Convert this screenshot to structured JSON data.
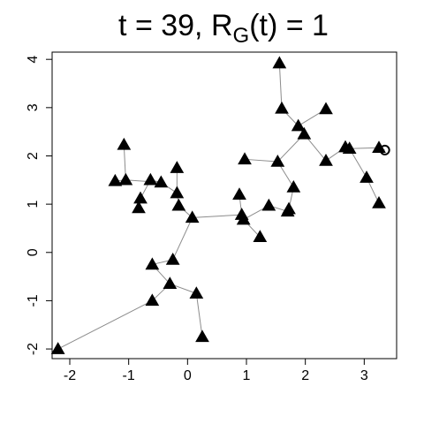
{
  "chart_data": {
    "type": "scatter",
    "title": {
      "prefix": "t = 39, R",
      "subscript": "G",
      "suffix": "(t) = 1"
    },
    "xlabel": "",
    "ylabel": "",
    "xlim": [
      -2.3,
      3.55
    ],
    "ylim": [
      -2.2,
      4.15
    ],
    "xticks": [
      -2,
      -1,
      0,
      1,
      2,
      3
    ],
    "yticks": [
      -2,
      -1,
      0,
      1,
      2,
      3,
      4
    ],
    "grid": false,
    "nodes": [
      {
        "x": -2.2,
        "y": -2.0
      },
      {
        "x": -0.6,
        "y": -1.0
      },
      {
        "x": -0.3,
        "y": -0.65
      },
      {
        "x": 0.15,
        "y": -0.85
      },
      {
        "x": 0.25,
        "y": -1.75
      },
      {
        "x": -0.6,
        "y": -0.25
      },
      {
        "x": -0.25,
        "y": -0.15
      },
      {
        "x": 0.08,
        "y": 0.72
      },
      {
        "x": -0.15,
        "y": 0.97
      },
      {
        "x": -0.18,
        "y": 1.23
      },
      {
        "x": -0.18,
        "y": 1.75
      },
      {
        "x": -0.45,
        "y": 1.45
      },
      {
        "x": -0.63,
        "y": 1.5
      },
      {
        "x": -0.8,
        "y": 1.12
      },
      {
        "x": -0.83,
        "y": 0.92
      },
      {
        "x": -1.05,
        "y": 1.5
      },
      {
        "x": -1.08,
        "y": 2.23
      },
      {
        "x": -1.23,
        "y": 1.48
      },
      {
        "x": 0.92,
        "y": 0.78
      },
      {
        "x": 0.88,
        "y": 1.2
      },
      {
        "x": 0.95,
        "y": 0.68
      },
      {
        "x": 1.23,
        "y": 0.32
      },
      {
        "x": 1.38,
        "y": 0.97
      },
      {
        "x": 1.7,
        "y": 0.85
      },
      {
        "x": 1.72,
        "y": 0.9
      },
      {
        "x": 1.8,
        "y": 1.35
      },
      {
        "x": 0.97,
        "y": 1.93
      },
      {
        "x": 1.53,
        "y": 1.88
      },
      {
        "x": 1.98,
        "y": 2.45
      },
      {
        "x": 1.88,
        "y": 2.62
      },
      {
        "x": 1.6,
        "y": 2.98
      },
      {
        "x": 1.56,
        "y": 3.92
      },
      {
        "x": 2.35,
        "y": 2.97
      },
      {
        "x": 2.35,
        "y": 1.9
      },
      {
        "x": 2.68,
        "y": 2.18
      },
      {
        "x": 2.75,
        "y": 2.15
      },
      {
        "x": 3.25,
        "y": 2.17
      },
      {
        "x": 3.04,
        "y": 1.55
      },
      {
        "x": 3.25,
        "y": 1.02
      }
    ],
    "current_node": {
      "x": 3.35,
      "y": 2.12
    },
    "edges": [
      [
        0,
        1
      ],
      [
        1,
        2
      ],
      [
        2,
        5
      ],
      [
        2,
        3
      ],
      [
        3,
        4
      ],
      [
        5,
        6
      ],
      [
        6,
        7
      ],
      [
        7,
        8
      ],
      [
        8,
        9
      ],
      [
        9,
        10
      ],
      [
        9,
        11
      ],
      [
        11,
        12
      ],
      [
        11,
        15
      ],
      [
        12,
        13
      ],
      [
        13,
        14
      ],
      [
        15,
        16
      ],
      [
        15,
        17
      ],
      [
        7,
        18
      ],
      [
        18,
        19
      ],
      [
        18,
        20
      ],
      [
        20,
        21
      ],
      [
        20,
        22
      ],
      [
        22,
        23
      ],
      [
        23,
        24
      ],
      [
        24,
        25
      ],
      [
        25,
        27
      ],
      [
        27,
        26
      ],
      [
        27,
        28
      ],
      [
        28,
        29
      ],
      [
        29,
        30
      ],
      [
        30,
        31
      ],
      [
        29,
        32
      ],
      [
        28,
        33
      ],
      [
        33,
        34
      ],
      [
        34,
        35
      ],
      [
        35,
        36
      ],
      [
        35,
        37
      ],
      [
        37,
        38
      ]
    ],
    "current_edge_from": 36
  }
}
